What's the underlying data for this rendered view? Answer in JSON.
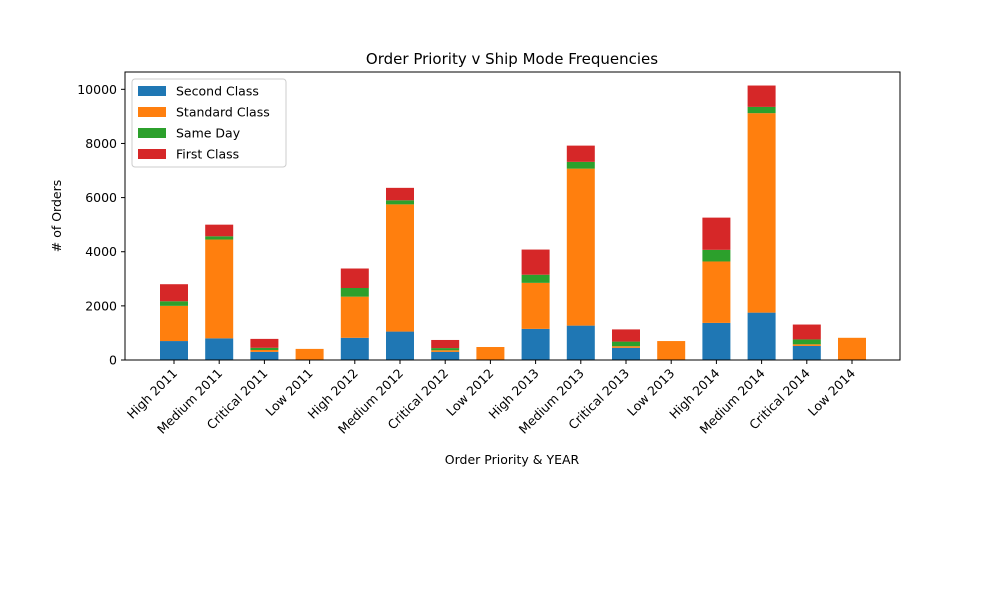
{
  "chart_data": {
    "type": "bar",
    "stacked": true,
    "title": "Order Priority v Ship Mode Frequencies",
    "xlabel": "Order Priority & YEAR",
    "ylabel": "# of Orders",
    "ylim": [
      0,
      10640
    ],
    "yticks": [
      0,
      2000,
      4000,
      6000,
      8000,
      10000
    ],
    "grid": false,
    "legend_position": "top-left",
    "categories": [
      "High 2011",
      "Medium 2011",
      "Critical 2011",
      "Low 2011",
      "High 2012",
      "Medium 2012",
      "Critical 2012",
      "Low 2012",
      "High 2013",
      "Medium 2013",
      "Critical 2013",
      "Low 2013",
      "High 2014",
      "Medium 2014",
      "Critical 2014",
      "Low 2014"
    ],
    "series": [
      {
        "name": "Second Class",
        "color": "#1f77b4",
        "values": [
          700,
          800,
          300,
          0,
          820,
          1050,
          300,
          0,
          1150,
          1270,
          450,
          0,
          1370,
          1750,
          520,
          0
        ]
      },
      {
        "name": "Standard Class",
        "color": "#ff7f0e",
        "values": [
          1300,
          3650,
          70,
          410,
          1520,
          4700,
          60,
          480,
          1700,
          5800,
          60,
          700,
          2270,
          7370,
          60,
          820
        ]
      },
      {
        "name": "Same Day",
        "color": "#2ca02c",
        "values": [
          170,
          120,
          80,
          0,
          320,
          150,
          80,
          0,
          300,
          250,
          170,
          0,
          430,
          230,
          180,
          0
        ]
      },
      {
        "name": "First Class",
        "color": "#d62728",
        "values": [
          630,
          430,
          330,
          0,
          720,
          460,
          300,
          0,
          930,
          600,
          450,
          0,
          1190,
          790,
          550,
          0
        ]
      }
    ]
  }
}
